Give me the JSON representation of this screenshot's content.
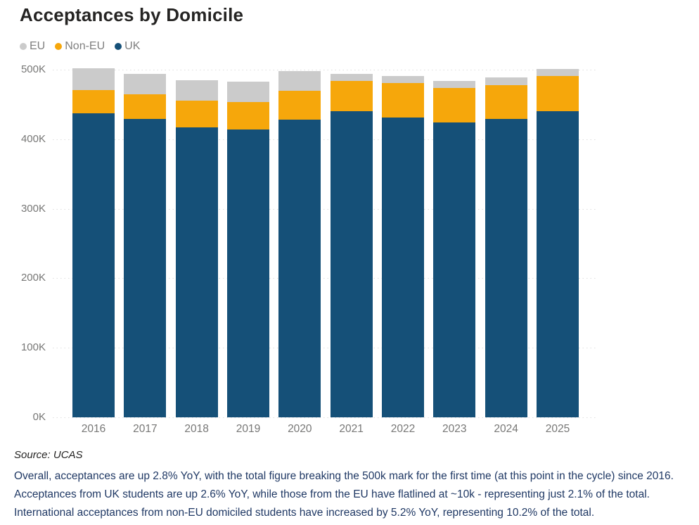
{
  "title": "Acceptances by Domicile",
  "legend": [
    {
      "label": "EU",
      "color": "#cbcbcb"
    },
    {
      "label": "Non-EU",
      "color": "#f6a70b"
    },
    {
      "label": "UK",
      "color": "#155078"
    }
  ],
  "chart_data": {
    "type": "bar",
    "stacked": true,
    "title": "Acceptances by Domicile",
    "xlabel": "",
    "ylabel": "",
    "unit": "thousands of acceptances",
    "categories": [
      "2016",
      "2017",
      "2018",
      "2019",
      "2020",
      "2021",
      "2022",
      "2023",
      "2024",
      "2025"
    ],
    "series": [
      {
        "name": "UK",
        "color": "#155078",
        "values": [
          437,
          429,
          417,
          414,
          428,
          440,
          431,
          424,
          429,
          440
        ]
      },
      {
        "name": "Non-EU",
        "color": "#f6a70b",
        "values": [
          34,
          36,
          38,
          39,
          42,
          44,
          50,
          50,
          49,
          51
        ]
      },
      {
        "name": "EU",
        "color": "#cbcbcb",
        "values": [
          31,
          29,
          30,
          30,
          28,
          10,
          10,
          10,
          11,
          10
        ]
      }
    ],
    "ylim": [
      0,
      500
    ],
    "yticks": [
      {
        "label": "0K",
        "value": 0
      },
      {
        "label": "100K",
        "value": 100
      },
      {
        "label": "200K",
        "value": 200
      },
      {
        "label": "300K",
        "value": 300
      },
      {
        "label": "400K",
        "value": 400
      },
      {
        "label": "500K",
        "value": 500
      }
    ],
    "grid": "horizontal dotted",
    "legend_position": "top-left"
  },
  "source": "Source: UCAS",
  "commentary": {
    "line1": "Overall, acceptances are up 2.8% YoY, with the total figure breaking the 500k mark for the first time (at this point in the cycle) since 2016.",
    "line2": "Acceptances from UK students are up 2.6% YoY, while those from the EU have flatlined at ~10k - representing just 2.1% of the total.",
    "line3": "International acceptances from non-EU domiciled students have increased by 5.2% YoY, representing 10.2% of the total."
  },
  "colors": {
    "background": "#ffffff",
    "title_text": "#252423",
    "axis_text": "#777776",
    "legend_text": "#7f7f7f",
    "gridline": "#dedede",
    "commentary_text": "#1f3864"
  }
}
